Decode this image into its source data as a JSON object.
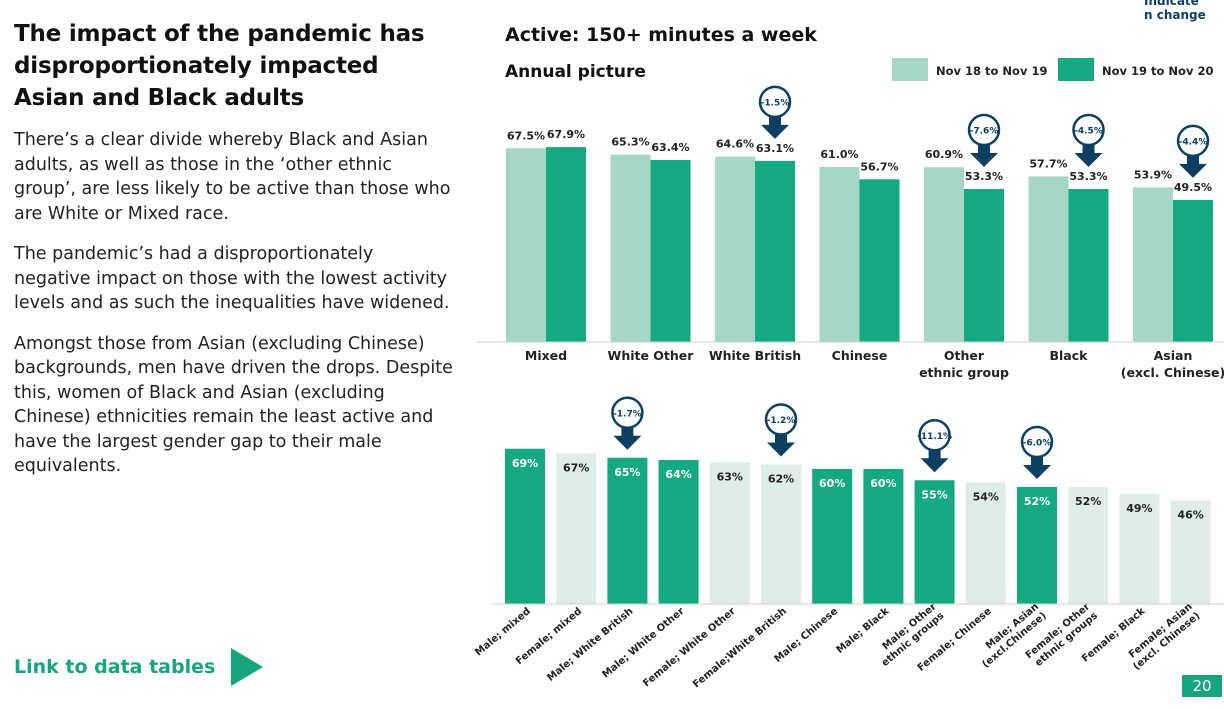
{
  "page": {
    "title": "The impact of the pandemic has disproportionately impacted Asian and Black adults",
    "paragraphs": [
      "There’s a clear divide whereby Black and Asian adults, as well as those in the ‘other ethnic group’, are less likely to be active than those who are White or Mixed race.",
      "The pandemic’s had a disproportionately negative impact on those with the lowest activity levels and as such the inequalities have widened.",
      "Amongst those from Asian (excluding Chinese) backgrounds, men have driven the drops. Despite this, women of Black and Asian (excluding Chinese) ethnicities remain the least active and have the largest gender gap to their male equivalents."
    ],
    "link_label": "Link to data tables",
    "corner_note": "Indicate n change",
    "page_number": "20"
  },
  "colors": {
    "light": "#a6d6c4",
    "dark": "#14a883",
    "pale": "#deeee7",
    "marker": "#0d3f63"
  },
  "chart_data": [
    {
      "type": "bar",
      "title": "Active: 150+ minutes a week",
      "subtitle": "Annual picture",
      "categories": [
        "Mixed",
        "White Other",
        "White British",
        "Chinese",
        "Other ethnic group",
        "Black",
        "Asian (excl. Chinese)"
      ],
      "category_lines": [
        [
          "Mixed"
        ],
        [
          "White Other"
        ],
        [
          "White British"
        ],
        [
          "Chinese"
        ],
        [
          "Other",
          "ethnic group"
        ],
        [
          "Black"
        ],
        [
          "Asian",
          "(excl. Chinese)"
        ]
      ],
      "series": [
        {
          "name": "Nov 18 to Nov 19",
          "values": [
            67.5,
            65.3,
            64.6,
            61.0,
            60.9,
            57.7,
            53.9
          ]
        },
        {
          "name": "Nov 19 to Nov 20",
          "values": [
            67.9,
            63.4,
            63.1,
            56.7,
            53.3,
            53.3,
            49.5
          ]
        }
      ],
      "value_labels": [
        [
          "67.5%",
          "65.3%",
          "64.6%",
          "61.0%",
          "60.9%",
          "57.7%",
          "53.9%"
        ],
        [
          "67.9%",
          "63.4%",
          "63.1%",
          "56.7%",
          "53.3%",
          "53.3%",
          "49.5%"
        ]
      ],
      "change_markers": [
        {
          "category_index": 2,
          "label": "-1.5%"
        },
        {
          "category_index": 4,
          "label": "-7.6%"
        },
        {
          "category_index": 5,
          "label": "-4.5%"
        },
        {
          "category_index": 6,
          "label": "-4.4%"
        }
      ],
      "ylim": [
        0,
        100
      ],
      "legend_position": "top-right"
    },
    {
      "type": "bar",
      "categories": [
        "Male; mixed",
        "Female; mixed",
        "Male; White British",
        "Male; White Other",
        "Female; White Other",
        "Female; White British",
        "Male; Chinese",
        "Male; Black",
        "Male; Other ethnic groups",
        "Female; Chinese",
        "Male; Asian (excl.Chinese)",
        "Female; Other ethnic groups",
        "Female; Black",
        "Female; Asian (excl. Chinese)"
      ],
      "category_lines": [
        [
          "Male; mixed"
        ],
        [
          "Female; mixed"
        ],
        [
          "Male; White British"
        ],
        [
          "Male; White Other"
        ],
        [
          "Female; White Other"
        ],
        [
          "Female;White British"
        ],
        [
          "Male; Chinese"
        ],
        [
          "Male; Black"
        ],
        [
          "Male; Other",
          "ethnic groups"
        ],
        [
          "Female; Chinese"
        ],
        [
          "Male; Asian",
          "(excl.Chinese)"
        ],
        [
          "Female; Other",
          "ethnic groups"
        ],
        [
          "Female; Black"
        ],
        [
          "Female; Asian",
          "(excl. Chinese)"
        ]
      ],
      "values": [
        69,
        67,
        65,
        64,
        63,
        62,
        60,
        60,
        55,
        54,
        52,
        52,
        49,
        46
      ],
      "value_labels": [
        "69%",
        "67%",
        "65%",
        "64%",
        "63%",
        "62%",
        "60%",
        "60%",
        "55%",
        "54%",
        "52%",
        "52%",
        "49%",
        "46%"
      ],
      "highlighted": [
        true,
        false,
        true,
        true,
        false,
        false,
        true,
        true,
        true,
        false,
        true,
        false,
        false,
        false
      ],
      "change_markers": [
        {
          "category_index": 2,
          "label": "-1.7%"
        },
        {
          "category_index": 5,
          "label": "-1.2%"
        },
        {
          "category_index": 8,
          "label": "-11.1%"
        },
        {
          "category_index": 10,
          "label": "-6.0%"
        }
      ],
      "ylim": [
        0,
        100
      ]
    }
  ]
}
